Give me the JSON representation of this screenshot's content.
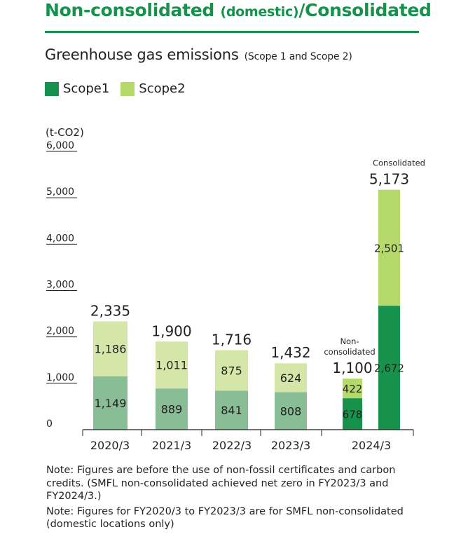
{
  "header": {
    "title_part1": "Non-consolidated ",
    "title_paren": "(domestic)",
    "title_part2": "/Consolidated"
  },
  "subtitle": {
    "main": "Greenhouse gas emissions",
    "scope": "(Scope 1 and Scope 2)"
  },
  "legend": [
    {
      "label": "Scope1",
      "color": "#16924c"
    },
    {
      "label": "Scope2",
      "color": "#b5d96a"
    }
  ],
  "colors": {
    "scope1_dark": "#16924c",
    "scope2_bright": "#b5d96a",
    "scope1_muted": "#88bd96",
    "scope2_muted": "#d5e7a8",
    "brand_green": "#16924c"
  },
  "chart_data": {
    "type": "bar",
    "stacked": true,
    "unit": "(t-CO2)",
    "ylim": [
      0,
      6000
    ],
    "yticks": [
      "0",
      "1,000",
      "2,000",
      "3,000",
      "4,000",
      "5,000",
      "6,000"
    ],
    "grid": false,
    "legend_position": "top-left",
    "categories": [
      "2020/3",
      "2021/3",
      "2022/3",
      "2023/3",
      "2024/3"
    ],
    "bars": [
      {
        "category": "2020/3",
        "scope1": 1149,
        "scope2": 1186,
        "total_label": "2,335",
        "scope1_label": "1,149",
        "scope2_label": "1,186",
        "style": "muted"
      },
      {
        "category": "2021/3",
        "scope1": 889,
        "scope2": 1011,
        "total_label": "1,900",
        "scope1_label": "889",
        "scope2_label": "1,011",
        "style": "muted"
      },
      {
        "category": "2022/3",
        "scope1": 841,
        "scope2": 875,
        "total_label": "1,716",
        "scope1_label": "841",
        "scope2_label": "875",
        "style": "muted"
      },
      {
        "category": "2023/3",
        "scope1": 808,
        "scope2": 624,
        "total_label": "1,432",
        "scope1_label": "808",
        "scope2_label": "624",
        "style": "muted"
      },
      {
        "category": "2024/3",
        "scope1": 678,
        "scope2": 422,
        "total_label": "1,100",
        "scope1_label": "678",
        "scope2_label": "422",
        "style": "bright",
        "annotation": [
          "Non-",
          "consolidated"
        ]
      },
      {
        "category": "2024/3",
        "scope1": 2672,
        "scope2": 2501,
        "total_label": "5,173",
        "scope1_label": "2,672",
        "scope2_label": "2,501",
        "style": "bright",
        "annotation": [
          "Consolidated"
        ]
      }
    ]
  },
  "notes": [
    "Note: Figures are before the use of non-fossil certificates and carbon credits. (SMFL non-consolidated achieved net zero in FY2023/3 and FY2024/3.)",
    "Note: Figures for FY2020/3 to FY2023/3 are for SMFL non-consolidated (domestic locations only)"
  ]
}
